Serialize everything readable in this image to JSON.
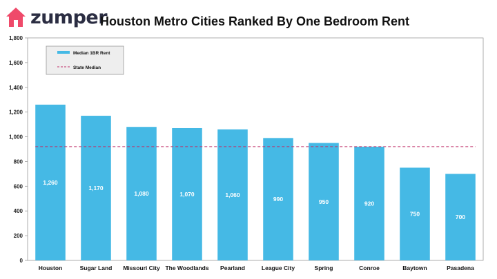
{
  "brand": {
    "name": "zumper",
    "accent_color": "#ef4a6a",
    "icon": "house-icon"
  },
  "chart_data": {
    "type": "bar",
    "title": "Houston Metro Cities Ranked By One Bedroom Rent",
    "categories": [
      "Houston",
      "Sugar Land",
      "Missouri City",
      "The Woodlands",
      "Pearland",
      "League City",
      "Spring",
      "Conroe",
      "Baytown",
      "Pasadena"
    ],
    "series": [
      {
        "name": "Median 1BR Rent",
        "type": "bar",
        "color": "#45b9e5",
        "values": [
          1260,
          1170,
          1080,
          1070,
          1060,
          990,
          950,
          920,
          750,
          700
        ],
        "data_labels": [
          "1,260",
          "1,170",
          "1,080",
          "1,070",
          "1,060",
          "990",
          "950",
          "920",
          "750",
          "700"
        ]
      },
      {
        "name": "State Median",
        "type": "line",
        "style": "dashed",
        "color": "#c0306a",
        "value": 920
      }
    ],
    "ylim": [
      0,
      1800
    ],
    "yticks": [
      "0",
      "200",
      "400",
      "600",
      "800",
      "1,000",
      "1,200",
      "1,400",
      "1,600",
      "1,800"
    ],
    "xlabel": "",
    "ylabel": "",
    "grid": false,
    "legend_position": "top-left"
  }
}
